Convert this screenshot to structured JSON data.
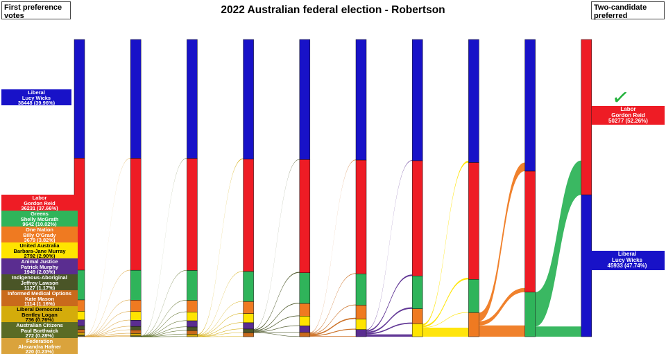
{
  "title": "2022 Australian federal election - Robertson",
  "panels": {
    "left": "First preference votes",
    "right": "Two-candidate preferred"
  },
  "icons": {
    "winner_check": "✓",
    "winner_check_color": "#23B23C"
  },
  "parties": [
    {
      "id": "lib",
      "party": "Liberal",
      "candidate": "Lucy Wicks",
      "first_pref": "38448 (39.96%)",
      "color": "#1812C8",
      "text": "#ffffff"
    },
    {
      "id": "alp",
      "party": "Labor",
      "candidate": "Gordon Reid",
      "first_pref": "36231 (37.66%)",
      "color": "#EE1C25",
      "text": "#ffffff"
    },
    {
      "id": "grn",
      "party": "Greens",
      "candidate": "Shelly McGrath",
      "first_pref": "9642 (10.02%)",
      "color": "#2FB45A",
      "text": "#ffffff"
    },
    {
      "id": "on",
      "party": "One Nation",
      "candidate": "Billy O'Grady",
      "first_pref": "3679 (3.82%)",
      "color": "#EF7A21",
      "text": "#ffffff"
    },
    {
      "id": "uap",
      "party": "United Australia",
      "candidate": "Barbara-Jane Murray",
      "first_pref": "2792 (2.90%)",
      "color": "#FFE400",
      "text": "#000000"
    },
    {
      "id": "ajp",
      "party": "Animal Justice",
      "candidate": "Patrick Murphy",
      "first_pref": "1949 (2.03%)",
      "color": "#5A2D90",
      "text": "#ffffff"
    },
    {
      "id": "iap",
      "party": "Indigenous-Aboriginal",
      "candidate": "Jeffrey Lawson",
      "first_pref": "1127 (1.17%)",
      "color": "#4A5527",
      "text": "#ffffff"
    },
    {
      "id": "imo",
      "party": "Informed Medical Options",
      "candidate": "Kate Mason",
      "first_pref": "1114 (1.16%)",
      "color": "#C96A1C",
      "text": "#ffffff"
    },
    {
      "id": "ldp",
      "party": "Liberal Democrats",
      "candidate": "Bentley Logan",
      "first_pref": "736 (0.76%)",
      "color": "#D4AC0B",
      "text": "#000000"
    },
    {
      "id": "ac",
      "party": "Australian Citizens",
      "candidate": "Paul Borthwick",
      "first_pref": "272 (0.28%)",
      "color": "#5A6B25",
      "text": "#ffffff"
    },
    {
      "id": "fed",
      "party": "Federation",
      "candidate": "Alexandra Hafner",
      "first_pref": "220 (0.23%)",
      "color": "#DAA33C",
      "text": "#ffffff"
    }
  ],
  "tcp": {
    "winner": {
      "id": "alp",
      "party": "Labor",
      "candidate": "Gordon Reid",
      "result": "50277 (52.26%)"
    },
    "runner_up": {
      "id": "lib",
      "party": "Liberal",
      "candidate": "Lucy Wicks",
      "result": "45933 (47.74%)"
    }
  },
  "chart_data": {
    "type": "sankey",
    "description": "Full-preference distribution flow over 10 counting rounds; values are percent of total formal votes",
    "rounds": [
      {
        "segments": [
          [
            "lib",
            39.96
          ],
          [
            "alp",
            37.66
          ],
          [
            "grn",
            10.02
          ],
          [
            "on",
            3.82
          ],
          [
            "uap",
            2.9
          ],
          [
            "ajp",
            2.03
          ],
          [
            "iap",
            1.17
          ],
          [
            "imo",
            1.16
          ],
          [
            "ldp",
            0.76
          ],
          [
            "ac",
            0.28
          ],
          [
            "fed",
            0.23
          ]
        ]
      },
      {
        "segments": [
          [
            "lib",
            39.99
          ],
          [
            "alp",
            37.68
          ],
          [
            "grn",
            10.04
          ],
          [
            "on",
            3.86
          ],
          [
            "uap",
            2.93
          ],
          [
            "ajp",
            2.05
          ],
          [
            "iap",
            1.19
          ],
          [
            "imo",
            1.19
          ],
          [
            "ldp",
            0.78
          ],
          [
            "ac",
            0.29
          ]
        ]
      },
      {
        "segments": [
          [
            "lib",
            40.02
          ],
          [
            "alp",
            37.71
          ],
          [
            "grn",
            10.07
          ],
          [
            "on",
            3.9
          ],
          [
            "uap",
            2.96
          ],
          [
            "ajp",
            2.08
          ],
          [
            "iap",
            1.22
          ],
          [
            "imo",
            1.23
          ],
          [
            "ldp",
            0.82
          ]
        ]
      },
      {
        "segments": [
          [
            "lib",
            40.27
          ],
          [
            "alp",
            37.79
          ],
          [
            "grn",
            10.12
          ],
          [
            "on",
            4.05
          ],
          [
            "uap",
            3.08
          ],
          [
            "ajp",
            2.12
          ],
          [
            "iap",
            1.27
          ],
          [
            "imo",
            1.31
          ]
        ]
      },
      {
        "segments": [
          [
            "lib",
            40.42
          ],
          [
            "alp",
            38.08
          ],
          [
            "grn",
            10.34
          ],
          [
            "on",
            4.25
          ],
          [
            "uap",
            3.26
          ],
          [
            "ajp",
            2.22
          ],
          [
            "imo",
            1.44
          ]
        ]
      },
      {
        "segments": [
          [
            "lib",
            40.58
          ],
          [
            "alp",
            38.27
          ],
          [
            "grn",
            10.56
          ],
          [
            "on",
            4.65
          ],
          [
            "uap",
            3.54
          ],
          [
            "ajp",
            2.4
          ]
        ]
      },
      {
        "segments": [
          [
            "lib",
            40.8
          ],
          [
            "alp",
            38.77
          ],
          [
            "grn",
            11.04
          ],
          [
            "on",
            5.05
          ],
          [
            "uap",
            4.34
          ]
        ]
      },
      {
        "segments": [
          [
            "lib",
            41.4
          ],
          [
            "alp",
            39.32
          ],
          [
            "grn",
            11.2
          ],
          [
            "on",
            8.08
          ]
        ]
      },
      {
        "segments": [
          [
            "lib",
            44.3
          ],
          [
            "alp",
            40.72
          ],
          [
            "grn",
            14.98
          ]
        ]
      },
      {
        "segments": [
          [
            "alp",
            52.26
          ],
          [
            "lib",
            47.74
          ]
        ]
      }
    ],
    "transfers": [
      {
        "round": 1,
        "from": "fed",
        "to": [
          [
            "lib",
            0.02
          ],
          [
            "alp",
            0.02
          ],
          [
            "grn",
            0.02
          ],
          [
            "on",
            0.04
          ],
          [
            "uap",
            0.03
          ],
          [
            "ajp",
            0.02
          ],
          [
            "iap",
            0.02
          ],
          [
            "imo",
            0.03
          ],
          [
            "ldp",
            0.02
          ],
          [
            "ac",
            0.01
          ]
        ]
      },
      {
        "round": 2,
        "from": "ac",
        "to": [
          [
            "lib",
            0.03
          ],
          [
            "alp",
            0.03
          ],
          [
            "grn",
            0.03
          ],
          [
            "on",
            0.04
          ],
          [
            "uap",
            0.03
          ],
          [
            "ajp",
            0.03
          ],
          [
            "iap",
            0.03
          ],
          [
            "imo",
            0.04
          ],
          [
            "ldp",
            0.03
          ]
        ]
      },
      {
        "round": 3,
        "from": "ldp",
        "to": [
          [
            "lib",
            0.25
          ],
          [
            "alp",
            0.08
          ],
          [
            "grn",
            0.05
          ],
          [
            "on",
            0.15
          ],
          [
            "uap",
            0.12
          ],
          [
            "ajp",
            0.04
          ],
          [
            "iap",
            0.05
          ],
          [
            "imo",
            0.08
          ]
        ]
      },
      {
        "round": 4,
        "from": "iap",
        "to": [
          [
            "lib",
            0.15
          ],
          [
            "alp",
            0.3
          ],
          [
            "grn",
            0.22
          ],
          [
            "on",
            0.2
          ],
          [
            "uap",
            0.18
          ],
          [
            "ajp",
            0.1
          ],
          [
            "imo",
            0.12
          ]
        ]
      },
      {
        "round": 5,
        "from": "imo",
        "to": [
          [
            "lib",
            0.16
          ],
          [
            "alp",
            0.2
          ],
          [
            "grn",
            0.22
          ],
          [
            "on",
            0.4
          ],
          [
            "uap",
            0.28
          ],
          [
            "ajp",
            0.18
          ]
        ]
      },
      {
        "round": 6,
        "from": "ajp",
        "to": [
          [
            "lib",
            0.22
          ],
          [
            "alp",
            0.5
          ],
          [
            "grn",
            0.48
          ],
          [
            "on",
            0.4
          ],
          [
            "uap",
            0.8
          ]
        ]
      },
      {
        "round": 7,
        "from": "uap",
        "to": [
          [
            "lib",
            0.6
          ],
          [
            "alp",
            0.55
          ],
          [
            "grn",
            0.16
          ],
          [
            "on",
            3.03
          ]
        ]
      },
      {
        "round": 8,
        "from": "on",
        "to": [
          [
            "lib",
            2.9
          ],
          [
            "alp",
            1.4
          ],
          [
            "grn",
            3.78
          ]
        ]
      },
      {
        "round": 9,
        "from": "grn",
        "to": [
          [
            "alp",
            11.54
          ],
          [
            "lib",
            3.44
          ]
        ]
      }
    ]
  }
}
